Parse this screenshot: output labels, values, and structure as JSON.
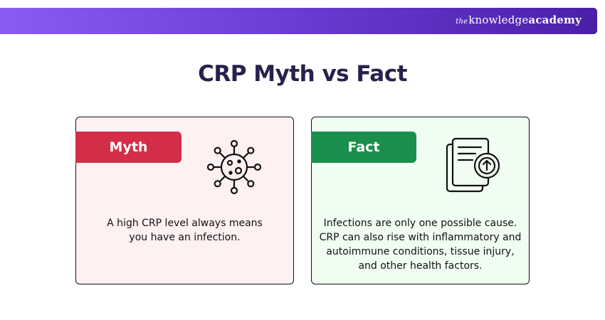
{
  "header": {
    "brand_the": "the",
    "brand_knowledge": "knowledge",
    "brand_academy": "academy"
  },
  "title": "CRP Myth vs Fact",
  "cards": {
    "myth": {
      "tag": "Myth",
      "icon": "virus-icon",
      "text": "A high CRP level always means you have an infection.",
      "tag_color": "#d22e47",
      "background": "#fff0f2"
    },
    "fact": {
      "tag": "Fact",
      "icon": "document-upload-icon",
      "text": "Infections are only one possible cause. CRP can also rise with inflammatory and autoimmune conditions, tissue injury, and other health factors.",
      "tag_color": "#1a8f4d",
      "background": "#f0fdf1"
    }
  },
  "colors": {
    "banner_start": "#8a5cf2",
    "banner_end": "#4a1fa8",
    "title": "#27214d"
  }
}
